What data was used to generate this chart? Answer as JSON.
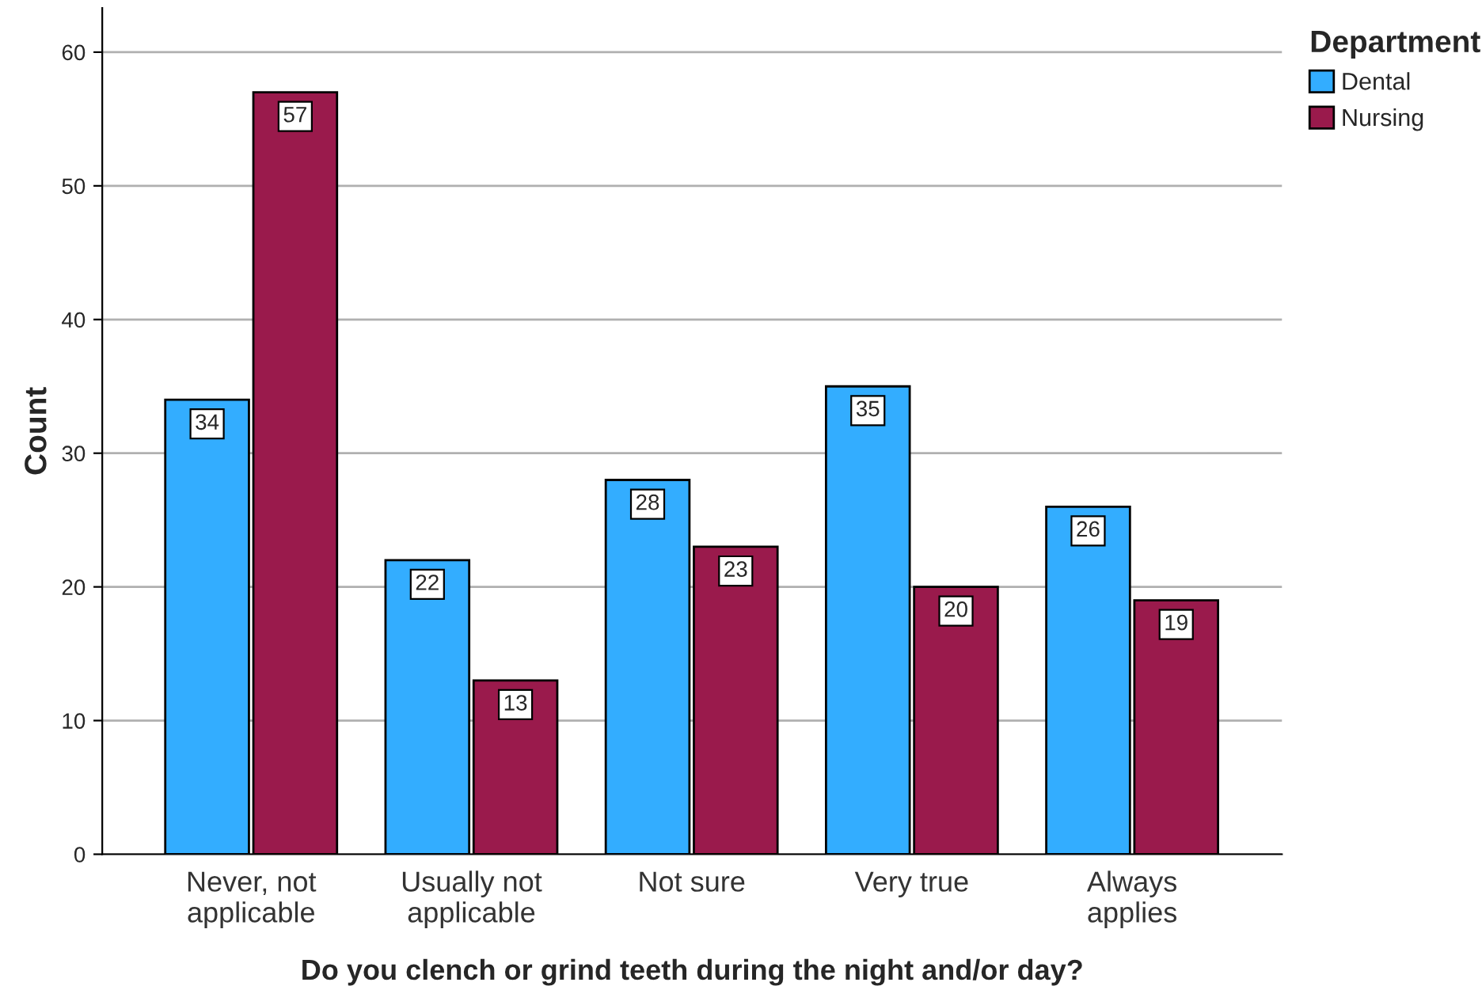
{
  "chart_data": {
    "type": "bar",
    "xlabel": "Do you clench or grind teeth during the night and/or day?",
    "ylabel": "Count",
    "legend_title": "Department",
    "categories": [
      "Never, not\napplicable",
      "Usually not\napplicable",
      "Not sure",
      "Very true",
      "Always\napplies"
    ],
    "series": [
      {
        "name": "Dental",
        "color": "#33adff",
        "values": [
          34,
          22,
          28,
          35,
          26
        ]
      },
      {
        "name": "Nursing",
        "color": "#9a1a4c",
        "values": [
          57,
          13,
          23,
          20,
          19
        ]
      }
    ],
    "ylim": [
      0,
      63.3
    ],
    "yticks": [
      0,
      10,
      20,
      30,
      40,
      50,
      60
    ],
    "grid": "y",
    "legend": "top right",
    "data_labels": true
  }
}
